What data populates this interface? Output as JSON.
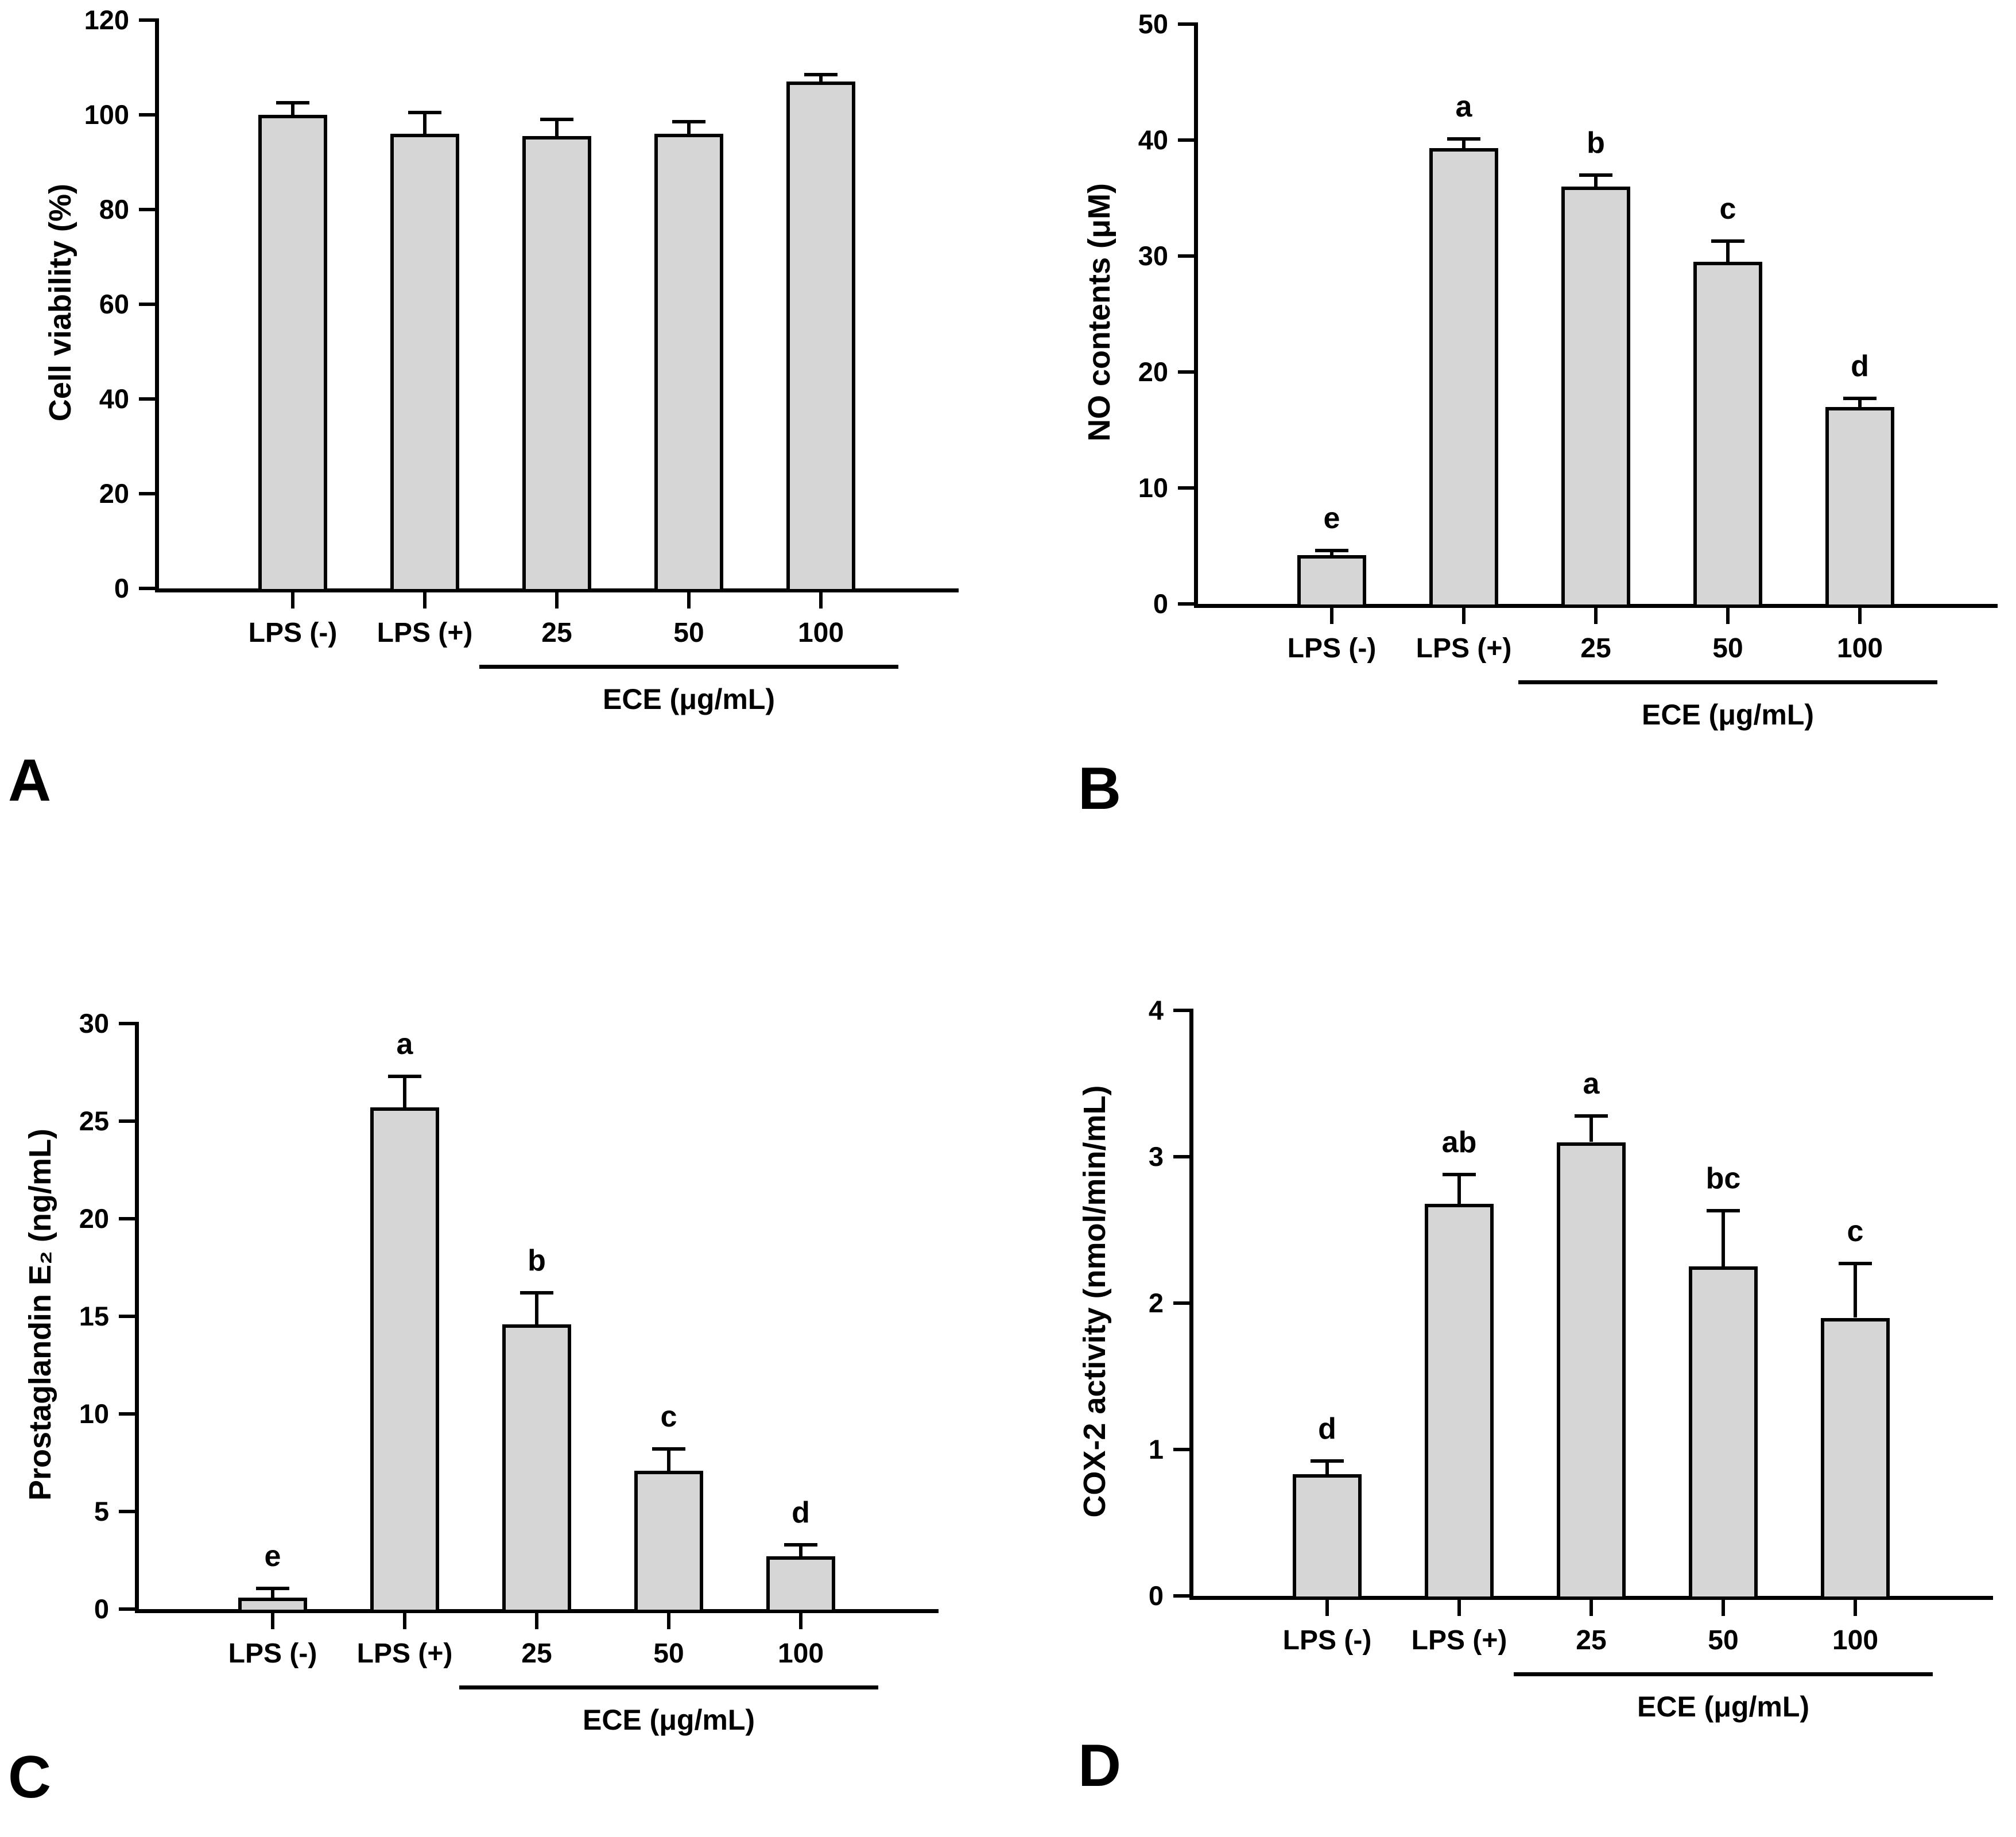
{
  "figure": {
    "background": "#ffffff",
    "bar_fill": "#d6d6d6",
    "bar_border": "#000000",
    "text_color": "#000000"
  },
  "chart_data": [
    {
      "panel": "A",
      "type": "bar",
      "title": "",
      "ylabel": "Cell viability (%)",
      "xlabel": "",
      "ylim": [
        0,
        120
      ],
      "yticks": [
        0,
        20,
        40,
        60,
        80,
        100,
        120
      ],
      "categories": [
        "LPS (-)",
        "LPS (+)",
        "25",
        "50",
        "100"
      ],
      "values": [
        100,
        96,
        95.5,
        96,
        107
      ],
      "errors": [
        2.5,
        4.5,
        3.5,
        2.5,
        1.5
      ],
      "sig_letters": [
        "",
        "",
        "",
        "",
        ""
      ],
      "x_group_label": "ECE (μg/mL)",
      "x_group_span": [
        2,
        4
      ],
      "grid": "off",
      "legend": "none"
    },
    {
      "panel": "B",
      "type": "bar",
      "title": "",
      "ylabel": "NO contents (μM)",
      "xlabel": "",
      "ylim": [
        0,
        50
      ],
      "yticks": [
        0,
        10,
        20,
        30,
        40,
        50
      ],
      "categories": [
        "LPS (-)",
        "LPS (+)",
        "25",
        "50",
        "100"
      ],
      "values": [
        4.2,
        39.3,
        36.0,
        29.5,
        17.0
      ],
      "errors": [
        0.4,
        0.8,
        1.0,
        1.8,
        0.7
      ],
      "sig_letters": [
        "e",
        "a",
        "b",
        "c",
        "d"
      ],
      "x_group_label": "ECE (μg/mL)",
      "x_group_span": [
        2,
        4
      ],
      "grid": "off",
      "legend": "none"
    },
    {
      "panel": "C",
      "type": "bar",
      "title": "",
      "ylabel": "Prostaglandin E₂ (ng/mL)",
      "xlabel": "",
      "ylim": [
        0,
        30
      ],
      "yticks": [
        0,
        5,
        10,
        15,
        20,
        25,
        30
      ],
      "categories": [
        "LPS (-)",
        "LPS (+)",
        "25",
        "50",
        "100"
      ],
      "values": [
        0.6,
        25.7,
        14.6,
        7.1,
        2.7
      ],
      "errors": [
        0.45,
        1.6,
        1.6,
        1.1,
        0.6
      ],
      "sig_letters": [
        "e",
        "a",
        "b",
        "c",
        "d"
      ],
      "x_group_label": "ECE (μg/mL)",
      "x_group_span": [
        2,
        4
      ],
      "grid": "off",
      "legend": "none"
    },
    {
      "panel": "D",
      "type": "bar",
      "title": "",
      "ylabel": "COX-2 activity (nmol/min/mL)",
      "xlabel": "",
      "ylim": [
        0,
        4
      ],
      "yticks": [
        0,
        1,
        2,
        3,
        4
      ],
      "categories": [
        "LPS (-)",
        "LPS (+)",
        "25",
        "50",
        "100"
      ],
      "values": [
        0.83,
        2.68,
        3.1,
        2.25,
        1.9
      ],
      "errors": [
        0.09,
        0.2,
        0.18,
        0.38,
        0.37
      ],
      "sig_letters": [
        "d",
        "ab",
        "a",
        "bc",
        "c"
      ],
      "x_group_label": "ECE (μg/mL)",
      "x_group_span": [
        2,
        4
      ],
      "grid": "off",
      "legend": "none"
    }
  ]
}
